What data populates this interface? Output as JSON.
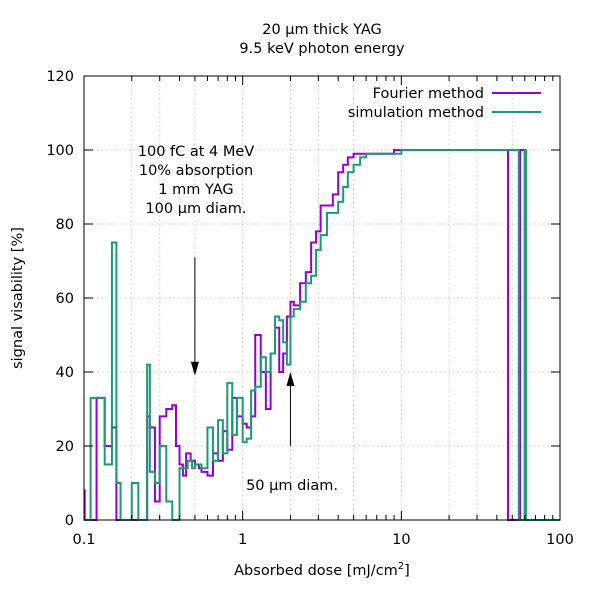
{
  "chart_data": {
    "type": "line",
    "title_line1": "20 μm thick YAG",
    "title_line2": "9.5 keV photon energy",
    "xlabel_main": "Absorbed dose [mJ/cm",
    "xlabel_sup": "2",
    "xlabel_end": "]",
    "ylabel": "signal visability [%]",
    "x_scale": "log",
    "xlim": [
      0.1,
      100
    ],
    "ylim": [
      0,
      120
    ],
    "grid": true,
    "legend_position": "top-right",
    "x_ticks": [
      {
        "value": 0.1,
        "label": "0.1"
      },
      {
        "value": 1,
        "label": "1"
      },
      {
        "value": 10,
        "label": "10"
      },
      {
        "value": 100,
        "label": "100"
      }
    ],
    "y_ticks": [
      {
        "value": 0,
        "label": "0"
      },
      {
        "value": 20,
        "label": "20"
      },
      {
        "value": 40,
        "label": "40"
      },
      {
        "value": 60,
        "label": "60"
      },
      {
        "value": 80,
        "label": "80"
      },
      {
        "value": 100,
        "label": "100"
      },
      {
        "value": 120,
        "label": "120"
      }
    ],
    "annotations": {
      "left_block": [
        "100 fC at 4 MeV",
        "10% absorption",
        "1 mm YAG",
        "100 μm diam."
      ],
      "bottom": "50 μm diam."
    },
    "arrows": [
      {
        "x": 0.5,
        "y_from": 71,
        "y_to": 39
      },
      {
        "x": 2,
        "y_from": 20,
        "y_to": 40
      }
    ],
    "series": [
      {
        "name": "Fourier method",
        "color": "#9400d3",
        "step_x": [
          0.1,
          0.101,
          0.12,
          0.135,
          0.15,
          0.16,
          0.17,
          0.25,
          0.26,
          0.28,
          0.3,
          0.33,
          0.36,
          0.38,
          0.4,
          0.42,
          0.44,
          0.47,
          0.5,
          0.53,
          0.55,
          0.6,
          0.65,
          0.7,
          0.75,
          0.8,
          0.86,
          0.92,
          1.0,
          1.06,
          1.13,
          1.2,
          1.3,
          1.4,
          1.5,
          1.6,
          1.7,
          1.8,
          1.9,
          2.0,
          2.1,
          2.3,
          2.5,
          2.7,
          2.9,
          3.1,
          3.4,
          3.7,
          4.0,
          4.3,
          4.6,
          5.0,
          5.5,
          6.0,
          7.0,
          8.0,
          9.0,
          10.0,
          11.0,
          46.0,
          47.0,
          55.0,
          56.0,
          60.0,
          61.0,
          100.0
        ],
        "step_y": [
          8,
          0,
          33,
          20,
          25,
          0,
          0,
          28,
          25,
          5,
          28,
          30,
          31,
          20,
          15,
          12,
          18,
          16,
          15,
          14,
          13,
          12,
          18,
          16,
          24,
          19,
          33,
          28,
          26,
          25,
          28,
          50,
          40,
          30,
          45,
          52,
          40,
          45,
          55,
          59,
          58,
          64,
          67,
          75,
          78,
          85,
          85,
          88,
          94,
          96,
          98,
          99,
          99,
          99,
          99,
          99,
          100,
          100,
          100,
          100,
          0,
          0,
          100,
          0,
          0,
          0
        ]
      },
      {
        "name": "simulation method",
        "color": "#1a9a78",
        "step_x": [
          0.1,
          0.11,
          0.12,
          0.135,
          0.15,
          0.16,
          0.17,
          0.2,
          0.22,
          0.25,
          0.26,
          0.28,
          0.3,
          0.33,
          0.36,
          0.4,
          0.45,
          0.48,
          0.5,
          0.55,
          0.6,
          0.65,
          0.7,
          0.75,
          0.8,
          0.86,
          0.92,
          1.0,
          1.06,
          1.13,
          1.2,
          1.3,
          1.4,
          1.5,
          1.6,
          1.7,
          1.8,
          1.9,
          2.0,
          2.1,
          2.3,
          2.5,
          2.7,
          2.9,
          3.1,
          3.4,
          3.7,
          4.0,
          4.3,
          4.6,
          5.0,
          5.5,
          6.0,
          7.0,
          8.0,
          9.0,
          10.0,
          11.0,
          46.0,
          47.0,
          55.0,
          56.0,
          60.0,
          61.0,
          100.0
        ],
        "step_y": [
          0,
          33,
          33,
          15,
          75,
          10,
          0,
          10,
          0,
          42,
          13,
          10,
          20,
          5,
          0,
          14,
          16,
          14,
          15,
          14,
          25,
          16,
          27,
          18,
          37,
          23,
          33,
          21,
          22,
          35,
          36,
          44,
          40,
          45,
          55,
          54,
          48,
          42,
          55,
          57,
          59,
          64,
          66,
          73,
          77,
          83,
          83,
          86,
          90,
          94,
          96,
          98,
          99,
          99,
          99,
          99,
          100,
          100,
          100,
          100,
          0,
          0,
          100,
          0,
          0,
          0
        ]
      }
    ]
  }
}
